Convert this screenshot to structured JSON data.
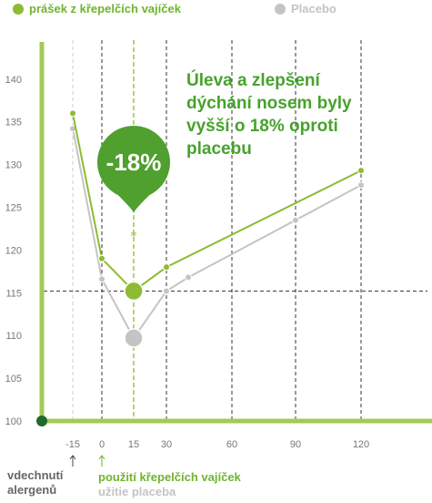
{
  "legend": {
    "treatment_label": "prášek z křepelčích vajíček",
    "placebo_label": "Placebo"
  },
  "callout": "Úleva a zlepšení dýchání nosem byly vyšší o 18% oproti placebu",
  "badge": "-18%",
  "notes": {
    "allergen_line1": "vdechnutí",
    "allergen_line2": "alergenů",
    "treatment_start": "použití křepelčích vajíček",
    "placebo_start": "užitie placeba"
  },
  "chart_data": {
    "type": "line",
    "x_ticks": [
      -15,
      0,
      15,
      30,
      60,
      90,
      120
    ],
    "y_ticks": [
      100,
      105,
      110,
      115,
      120,
      125,
      130,
      135,
      140
    ],
    "xlim": [
      -15,
      120
    ],
    "ylim": [
      100,
      140
    ],
    "series": [
      {
        "name": "prášek z křepelčích vajíček",
        "x": [
          -15,
          0,
          15,
          30,
          120
        ],
        "y": [
          136,
          119,
          115.2,
          118,
          129.3
        ]
      },
      {
        "name": "Placebo",
        "x": [
          -15,
          0,
          15,
          30,
          40,
          90,
          120
        ],
        "y": [
          134.2,
          116.6,
          109.7,
          115.2,
          116.8,
          123.5,
          127.6
        ]
      }
    ],
    "reference_y": 115.2,
    "highlight_x": 15,
    "difference": "-18%",
    "colors": {
      "treatment": "#8dbb34",
      "placebo": "#c4c4c4",
      "callout": "#47a22c",
      "axis": "#a5c958",
      "origin": "#1f6b2a"
    }
  }
}
